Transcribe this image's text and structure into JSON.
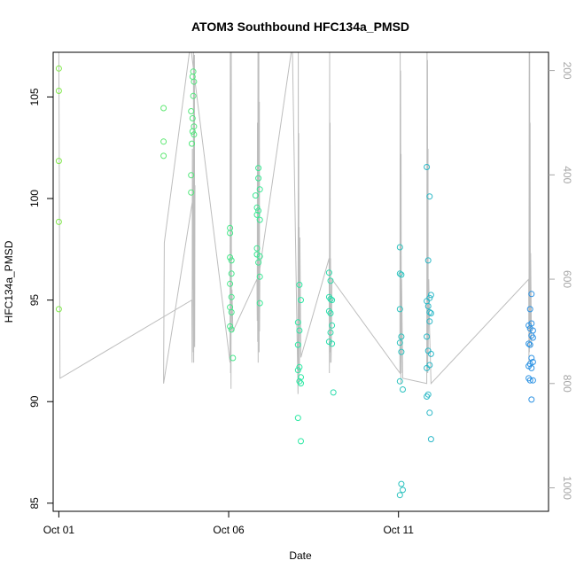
{
  "chart_data": {
    "type": "scatter",
    "title": "ATOM3 Southbound HFC134a_PMSD",
    "xlabel": "Date",
    "ylabel": "HFC134a_PMSD",
    "xlim": [
      "2016-09-30T20:00",
      "2016-10-15T10:00"
    ],
    "ylim": [
      84.6,
      107.2
    ],
    "x_ticks": [
      {
        "date": "2016-10-01",
        "label": "Oct 01"
      },
      {
        "date": "2016-10-06",
        "label": "Oct 06"
      },
      {
        "date": "2016-10-11",
        "label": "Oct 11"
      }
    ],
    "y_ticks": [
      85,
      90,
      95,
      100,
      105
    ],
    "y2_ticks": [
      200,
      400,
      600,
      800,
      1000
    ],
    "y2_range_at_ylim": [
      1045,
      165
    ],
    "grid": false,
    "legend": "none",
    "colors": {
      "points_start": "#84e84a",
      "points_mid": "#2de8a4",
      "points_end": "#2d8ce8",
      "secondary_line": "#bdbdbd",
      "right_axis": "#a6a6a6"
    },
    "series": [
      {
        "values": [
          {
            "x": "2016-10-01T00:00",
            "y": 106.4
          },
          {
            "x": "2016-10-01T00:00",
            "y": 105.3
          },
          {
            "x": "2016-10-01T00:00",
            "y": 101.85
          },
          {
            "x": "2016-10-01T00:00",
            "y": 98.85
          },
          {
            "x": "2016-10-01T00:00",
            "y": 94.55
          },
          {
            "x": "2016-10-04T02:00",
            "y": 104.45
          },
          {
            "x": "2016-10-04T02:00",
            "y": 102.8
          },
          {
            "x": "2016-10-04T02:00",
            "y": 102.1
          },
          {
            "x": "2016-10-04T23:00",
            "y": 106.25
          },
          {
            "x": "2016-10-04T22:30",
            "y": 106.0
          },
          {
            "x": "2016-10-04T23:30",
            "y": 105.75
          },
          {
            "x": "2016-10-04T23:00",
            "y": 105.05
          },
          {
            "x": "2016-10-04T21:30",
            "y": 104.3
          },
          {
            "x": "2016-10-04T22:30",
            "y": 103.95
          },
          {
            "x": "2016-10-04T23:30",
            "y": 103.55
          },
          {
            "x": "2016-10-04T22:30",
            "y": 103.3
          },
          {
            "x": "2016-10-04T23:30",
            "y": 103.15
          },
          {
            "x": "2016-10-04T22:00",
            "y": 102.7
          },
          {
            "x": "2016-10-04T21:30",
            "y": 101.15
          },
          {
            "x": "2016-10-04T21:30",
            "y": 100.3
          },
          {
            "x": "2016-10-06T01:00",
            "y": 98.55
          },
          {
            "x": "2016-10-06T01:00",
            "y": 98.3
          },
          {
            "x": "2016-10-06T01:00",
            "y": 97.1
          },
          {
            "x": "2016-10-06T02:00",
            "y": 96.95
          },
          {
            "x": "2016-10-06T02:00",
            "y": 96.3
          },
          {
            "x": "2016-10-06T01:00",
            "y": 95.8
          },
          {
            "x": "2016-10-06T02:00",
            "y": 95.15
          },
          {
            "x": "2016-10-06T01:00",
            "y": 94.65
          },
          {
            "x": "2016-10-06T02:00",
            "y": 94.4
          },
          {
            "x": "2016-10-06T01:00",
            "y": 93.7
          },
          {
            "x": "2016-10-06T02:00",
            "y": 93.55
          },
          {
            "x": "2016-10-06T03:00",
            "y": 92.15
          },
          {
            "x": "2016-10-06T21:00",
            "y": 101.5
          },
          {
            "x": "2016-10-06T21:00",
            "y": 101.0
          },
          {
            "x": "2016-10-06T22:00",
            "y": 100.45
          },
          {
            "x": "2016-10-06T19:00",
            "y": 100.15
          },
          {
            "x": "2016-10-06T20:00",
            "y": 99.55
          },
          {
            "x": "2016-10-06T21:00",
            "y": 99.4
          },
          {
            "x": "2016-10-06T20:00",
            "y": 99.2
          },
          {
            "x": "2016-10-06T22:00",
            "y": 98.95
          },
          {
            "x": "2016-10-06T20:00",
            "y": 97.55
          },
          {
            "x": "2016-10-06T20:00",
            "y": 97.25
          },
          {
            "x": "2016-10-06T22:00",
            "y": 97.15
          },
          {
            "x": "2016-10-06T21:00",
            "y": 96.85
          },
          {
            "x": "2016-10-06T22:00",
            "y": 96.15
          },
          {
            "x": "2016-10-06T22:00",
            "y": 94.85
          }
        ]
      },
      {
        "values": [
          {
            "x": "2016-10-08T02:00",
            "y": 95.75
          },
          {
            "x": "2016-10-08T03:00",
            "y": 95.0
          },
          {
            "x": "2016-10-08T01:00",
            "y": 93.9
          },
          {
            "x": "2016-10-08T02:00",
            "y": 93.5
          },
          {
            "x": "2016-10-08T01:00",
            "y": 92.8
          },
          {
            "x": "2016-10-08T02:00",
            "y": 91.7
          },
          {
            "x": "2016-10-08T01:00",
            "y": 91.55
          },
          {
            "x": "2016-10-08T03:00",
            "y": 91.2
          },
          {
            "x": "2016-10-08T02:00",
            "y": 91.0
          },
          {
            "x": "2016-10-08T03:00",
            "y": 90.9
          },
          {
            "x": "2016-10-08T01:00",
            "y": 89.2
          },
          {
            "x": "2016-10-08T03:00",
            "y": 88.05
          },
          {
            "x": "2016-10-08T23:00",
            "y": 96.35
          },
          {
            "x": "2016-10-08T23:00",
            "y": 95.15
          },
          {
            "x": "2016-10-09T00:00",
            "y": 95.95
          },
          {
            "x": "2016-10-09T00:00",
            "y": 95.05
          },
          {
            "x": "2016-10-09T01:00",
            "y": 95.0
          },
          {
            "x": "2016-10-08T23:00",
            "y": 94.45
          },
          {
            "x": "2016-10-09T00:00",
            "y": 94.35
          },
          {
            "x": "2016-10-09T01:00",
            "y": 93.75
          },
          {
            "x": "2016-10-09T00:00",
            "y": 93.4
          },
          {
            "x": "2016-10-08T23:00",
            "y": 92.95
          },
          {
            "x": "2016-10-09T01:00",
            "y": 92.85
          },
          {
            "x": "2016-10-09T02:00",
            "y": 90.45
          }
        ]
      },
      {
        "values": [
          {
            "x": "2016-10-11T01:00",
            "y": 97.6
          },
          {
            "x": "2016-10-11T01:00",
            "y": 96.3
          },
          {
            "x": "2016-10-11T02:00",
            "y": 96.25
          },
          {
            "x": "2016-10-11T01:00",
            "y": 94.55
          },
          {
            "x": "2016-10-11T02:00",
            "y": 93.2
          },
          {
            "x": "2016-10-11T01:00",
            "y": 92.9
          },
          {
            "x": "2016-10-11T02:00",
            "y": 92.45
          },
          {
            "x": "2016-10-11T01:00",
            "y": 91.0
          },
          {
            "x": "2016-10-11T03:00",
            "y": 90.6
          },
          {
            "x": "2016-10-11T02:00",
            "y": 85.95
          },
          {
            "x": "2016-10-11T03:00",
            "y": 85.65
          },
          {
            "x": "2016-10-11T01:00",
            "y": 85.4
          },
          {
            "x": "2016-10-11T20:00",
            "y": 101.55
          },
          {
            "x": "2016-10-11T22:00",
            "y": 100.1
          },
          {
            "x": "2016-10-11T21:00",
            "y": 96.95
          },
          {
            "x": "2016-10-11T23:00",
            "y": 95.25
          },
          {
            "x": "2016-10-11T22:00",
            "y": 95.1
          },
          {
            "x": "2016-10-11T20:00",
            "y": 94.95
          },
          {
            "x": "2016-10-11T21:00",
            "y": 94.7
          },
          {
            "x": "2016-10-11T22:00",
            "y": 94.4
          },
          {
            "x": "2016-10-11T23:00",
            "y": 94.35
          },
          {
            "x": "2016-10-11T22:00",
            "y": 93.95
          },
          {
            "x": "2016-10-11T20:00",
            "y": 93.2
          },
          {
            "x": "2016-10-11T21:00",
            "y": 92.5
          },
          {
            "x": "2016-10-11T23:00",
            "y": 92.35
          },
          {
            "x": "2016-10-11T22:00",
            "y": 91.8
          },
          {
            "x": "2016-10-11T20:00",
            "y": 91.65
          },
          {
            "x": "2016-10-11T21:00",
            "y": 90.35
          },
          {
            "x": "2016-10-11T20:00",
            "y": 90.25
          },
          {
            "x": "2016-10-11T22:00",
            "y": 89.45
          },
          {
            "x": "2016-10-11T23:00",
            "y": 88.15
          }
        ]
      },
      {
        "values": [
          {
            "x": "2016-10-14T22:00",
            "y": 95.3
          },
          {
            "x": "2016-10-14T21:00",
            "y": 94.55
          },
          {
            "x": "2016-10-14T22:00",
            "y": 93.85
          },
          {
            "x": "2016-10-14T20:00",
            "y": 93.75
          },
          {
            "x": "2016-10-14T21:00",
            "y": 93.6
          },
          {
            "x": "2016-10-14T23:00",
            "y": 93.5
          },
          {
            "x": "2016-10-14T22:00",
            "y": 93.25
          },
          {
            "x": "2016-10-14T23:00",
            "y": 93.15
          },
          {
            "x": "2016-10-14T20:00",
            "y": 92.85
          },
          {
            "x": "2016-10-14T21:00",
            "y": 92.8
          },
          {
            "x": "2016-10-14T22:00",
            "y": 92.15
          },
          {
            "x": "2016-10-14T23:00",
            "y": 91.95
          },
          {
            "x": "2016-10-14T21:00",
            "y": 91.85
          },
          {
            "x": "2016-10-14T20:00",
            "y": 91.75
          },
          {
            "x": "2016-10-14T22:00",
            "y": 91.65
          },
          {
            "x": "2016-10-14T20:00",
            "y": 91.15
          },
          {
            "x": "2016-10-14T21:00",
            "y": 91.05
          },
          {
            "x": "2016-10-14T23:00",
            "y": 91.05
          },
          {
            "x": "2016-10-14T22:00",
            "y": 90.1
          }
        ]
      }
    ],
    "secondary_line": {
      "axis": "right",
      "values": [
        {
          "x": "2016-10-01T00:00",
          "y2": 160
        },
        {
          "x": "2016-10-01T00:50",
          "y2": 790
        },
        {
          "x": "2016-10-04T22:00",
          "y2": 640
        },
        {
          "x": "2016-10-04T22:10",
          "y2": 760
        },
        {
          "x": "2016-10-04T22:20",
          "y2": 350
        },
        {
          "x": "2016-10-04T22:40",
          "y2": 620
        },
        {
          "x": "2016-10-04T22:50",
          "y2": 460
        },
        {
          "x": "2016-10-04T23:00",
          "y2": 740
        },
        {
          "x": "2016-10-04T23:10",
          "y2": 150
        },
        {
          "x": "2016-10-04T23:20",
          "y2": 760
        },
        {
          "x": "2016-10-04T23:30",
          "y2": 550
        },
        {
          "x": "2016-10-04T23:40",
          "y2": 720
        },
        {
          "x": "2016-10-04T23:50",
          "y2": 170
        },
        {
          "x": "2016-10-05T00:00",
          "y2": 730
        },
        {
          "x": "2016-10-05T00:10",
          "y2": 420
        },
        {
          "x": "2016-10-04T02:00",
          "y2": 800
        },
        {
          "x": "2016-10-04T02:30",
          "y2": 530
        },
        {
          "x": "2016-10-04T21:00",
          "y2": 150
        },
        {
          "x": "2016-10-06T01:00",
          "y2": 760
        },
        {
          "x": "2016-10-06T01:10",
          "y2": 150
        },
        {
          "x": "2016-10-06T01:20",
          "y2": 780
        },
        {
          "x": "2016-10-06T01:30",
          "y2": 420
        },
        {
          "x": "2016-10-06T01:40",
          "y2": 810
        },
        {
          "x": "2016-10-06T01:50",
          "y2": 150
        },
        {
          "x": "2016-10-06T02:00",
          "y2": 700
        },
        {
          "x": "2016-10-06T02:20",
          "y2": 620
        },
        {
          "x": "2016-10-06T03:00",
          "y2": 700
        },
        {
          "x": "2016-10-06T20:00",
          "y2": 600
        },
        {
          "x": "2016-10-06T20:10",
          "y2": 680
        },
        {
          "x": "2016-10-06T20:20",
          "y2": 300
        },
        {
          "x": "2016-10-06T20:30",
          "y2": 720
        },
        {
          "x": "2016-10-06T20:40",
          "y2": 150
        },
        {
          "x": "2016-10-06T20:50",
          "y2": 760
        },
        {
          "x": "2016-10-06T21:00",
          "y2": 220
        },
        {
          "x": "2016-10-06T21:10",
          "y2": 700
        },
        {
          "x": "2016-10-06T21:20",
          "y2": 150
        },
        {
          "x": "2016-10-06T21:30",
          "y2": 740
        },
        {
          "x": "2016-10-06T21:40",
          "y2": 260
        },
        {
          "x": "2016-10-06T21:50",
          "y2": 700
        },
        {
          "x": "2016-10-06T22:00",
          "y2": 580
        },
        {
          "x": "2016-10-07T21:00",
          "y2": 150
        },
        {
          "x": "2016-10-08T01:00",
          "y2": 820
        },
        {
          "x": "2016-10-08T01:10",
          "y2": 150
        },
        {
          "x": "2016-10-08T01:20",
          "y2": 780
        },
        {
          "x": "2016-10-08T01:30",
          "y2": 320
        },
        {
          "x": "2016-10-08T01:40",
          "y2": 800
        },
        {
          "x": "2016-10-08T01:50",
          "y2": 500
        },
        {
          "x": "2016-10-08T02:00",
          "y2": 780
        },
        {
          "x": "2016-10-08T02:20",
          "y2": 520
        },
        {
          "x": "2016-10-08T03:00",
          "y2": 750
        },
        {
          "x": "2016-10-08T23:00",
          "y2": 560
        },
        {
          "x": "2016-10-08T23:10",
          "y2": 780
        },
        {
          "x": "2016-10-08T23:20",
          "y2": 160
        },
        {
          "x": "2016-10-08T23:30",
          "y2": 760
        },
        {
          "x": "2016-10-08T23:40",
          "y2": 300
        },
        {
          "x": "2016-10-08T23:50",
          "y2": 740
        },
        {
          "x": "2016-10-09T00:00",
          "y2": 560
        },
        {
          "x": "2016-10-09T00:20",
          "y2": 760
        },
        {
          "x": "2016-10-09T01:00",
          "y2": 600
        },
        {
          "x": "2016-10-11T01:00",
          "y2": 780
        },
        {
          "x": "2016-10-11T01:10",
          "y2": 150
        },
        {
          "x": "2016-10-11T01:20",
          "y2": 760
        },
        {
          "x": "2016-10-11T01:30",
          "y2": 200
        },
        {
          "x": "2016-10-11T01:40",
          "y2": 800
        },
        {
          "x": "2016-10-11T01:50",
          "y2": 360
        },
        {
          "x": "2016-10-11T02:00",
          "y2": 780
        },
        {
          "x": "2016-10-11T02:10",
          "y2": 600
        },
        {
          "x": "2016-10-11T03:00",
          "y2": 790
        },
        {
          "x": "2016-10-11T20:00",
          "y2": 800
        },
        {
          "x": "2016-10-11T20:10",
          "y2": 160
        },
        {
          "x": "2016-10-11T20:20",
          "y2": 760
        },
        {
          "x": "2016-10-11T20:30",
          "y2": 180
        },
        {
          "x": "2016-10-11T20:40",
          "y2": 780
        },
        {
          "x": "2016-10-11T20:50",
          "y2": 350
        },
        {
          "x": "2016-10-11T21:00",
          "y2": 740
        },
        {
          "x": "2016-10-11T21:20",
          "y2": 600
        },
        {
          "x": "2016-10-11T22:00",
          "y2": 700
        },
        {
          "x": "2016-10-11T23:00",
          "y2": 800
        },
        {
          "x": "2016-10-14T20:00",
          "y2": 600
        },
        {
          "x": "2016-10-14T20:10",
          "y2": 760
        },
        {
          "x": "2016-10-14T20:20",
          "y2": 150
        },
        {
          "x": "2016-10-14T20:30",
          "y2": 740
        },
        {
          "x": "2016-10-14T20:40",
          "y2": 150
        },
        {
          "x": "2016-10-14T20:50",
          "y2": 720
        },
        {
          "x": "2016-10-14T21:00",
          "y2": 300
        },
        {
          "x": "2016-10-14T21:10",
          "y2": 700
        },
        {
          "x": "2016-10-14T21:20",
          "y2": 550
        },
        {
          "x": "2016-10-14T22:00",
          "y2": 730
        }
      ]
    }
  }
}
